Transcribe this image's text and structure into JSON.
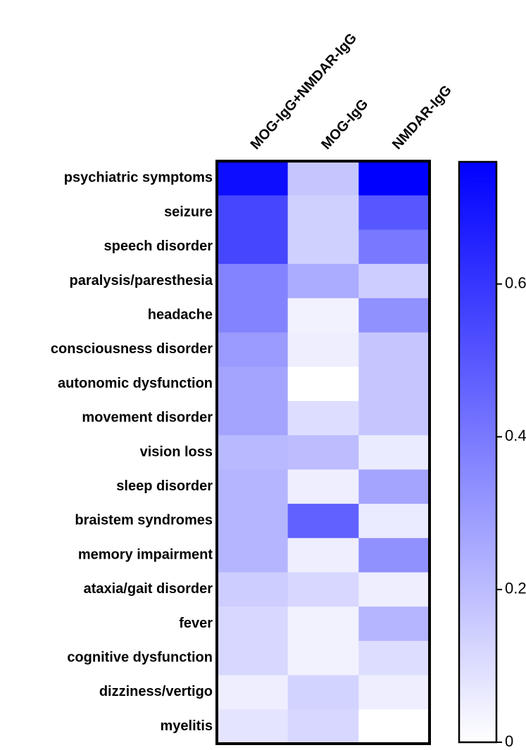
{
  "chart_data": {
    "type": "heatmap",
    "x_categories": [
      "MOG-IgG+NMDAR-IgG",
      "MOG-IgG",
      "NMDAR-IgG"
    ],
    "y_categories": [
      "psychiatric symptoms",
      "seizure",
      "speech disorder",
      "paralysis/paresthesia",
      "headache",
      "consciousness disorder",
      "autonomic dysfunction",
      "movement disorder",
      "vision loss",
      "sleep disorder",
      "braistem syndromes",
      "memory impairment",
      "ataxia/gait disorder",
      "fever",
      "cognitive dysfunction",
      "dizziness/vertigo",
      "myelitis"
    ],
    "values": [
      [
        0.72,
        0.17,
        0.76
      ],
      [
        0.55,
        0.14,
        0.5
      ],
      [
        0.55,
        0.14,
        0.4
      ],
      [
        0.37,
        0.25,
        0.15
      ],
      [
        0.37,
        0.04,
        0.33
      ],
      [
        0.3,
        0.05,
        0.17
      ],
      [
        0.27,
        0,
        0.17
      ],
      [
        0.27,
        0.1,
        0.17
      ],
      [
        0.21,
        0.2,
        0.06
      ],
      [
        0.22,
        0.05,
        0.27
      ],
      [
        0.22,
        0.47,
        0.06
      ],
      [
        0.22,
        0.05,
        0.33
      ],
      [
        0.15,
        0.12,
        0.05
      ],
      [
        0.12,
        0.04,
        0.22
      ],
      [
        0.12,
        0.04,
        0.1
      ],
      [
        0.05,
        0.13,
        0.05
      ],
      [
        0.08,
        0.12,
        0
      ]
    ],
    "colors": [
      "#ffffff",
      "#0000ff"
    ],
    "zlim": [
      0,
      0.76
    ],
    "zticks": [
      0,
      0.2,
      0.4,
      0.6
    ]
  }
}
